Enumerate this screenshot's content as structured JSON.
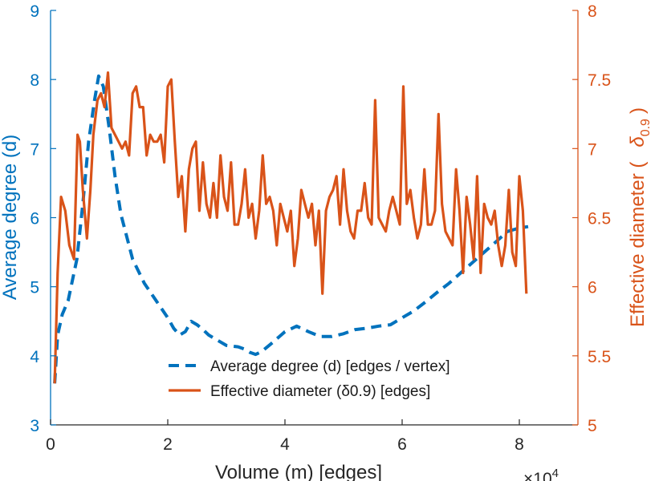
{
  "chart_data": {
    "type": "line",
    "xlabel": "Volume (m) [edges]",
    "x_multiplier": "×10",
    "x_multiplier_exp": "4",
    "ylabel_left": "Average degree (d)",
    "ylabel_right": "Effective diameter (",
    "ylabel_right_symbol": "δ",
    "ylabel_right_sub": "0.9",
    "ylabel_right_close": ")",
    "xlim": [
      0,
      90000
    ],
    "ylim_left": [
      3,
      9
    ],
    "ylim_right": [
      5,
      8
    ],
    "x_ticks": [
      0,
      20000,
      40000,
      60000,
      80000
    ],
    "x_tick_labels": [
      "0",
      "2",
      "4",
      "6",
      "8"
    ],
    "y_left_ticks": [
      3,
      4,
      5,
      6,
      7,
      8,
      9
    ],
    "y_left_tick_labels": [
      "3",
      "4",
      "5",
      "6",
      "7",
      "8",
      "9"
    ],
    "y_right_ticks": [
      5,
      5.5,
      6,
      6.5,
      7,
      7.5,
      8
    ],
    "y_right_tick_labels": [
      "5",
      "5.5",
      "6",
      "6.5",
      "7",
      "7.5",
      "8"
    ],
    "grid": false,
    "legend_position": "bottom-center",
    "colors": {
      "left_axis": "#0072BD",
      "right_axis": "#D95319",
      "average": "#0072BD",
      "diameter": "#D95319",
      "axis": "#262626"
    },
    "series": [
      {
        "name": "Average degree (d) [edges / vertex]",
        "axis": "left",
        "style": "dashed",
        "x": [
          700,
          1200,
          2000,
          3000,
          4500,
          5500,
          6500,
          7500,
          8200,
          9000,
          10000,
          11000,
          12000,
          14000,
          16000,
          18000,
          20000,
          21000,
          22000,
          23000,
          24000,
          25000,
          26000,
          27000,
          28000,
          30000,
          32000,
          33000,
          34000,
          35000,
          36000,
          38000,
          40000,
          42000,
          44000,
          46000,
          48000,
          50000,
          52000,
          54000,
          56000,
          58000,
          60000,
          62000,
          64000,
          66000,
          68000,
          70000,
          72000,
          74000,
          76000,
          78000,
          80000,
          81500
        ],
        "y": [
          3.6,
          4.3,
          4.6,
          4.8,
          5.4,
          6.2,
          7.1,
          7.7,
          8.05,
          7.9,
          7.3,
          6.6,
          6.05,
          5.4,
          5.05,
          4.8,
          4.55,
          4.4,
          4.3,
          4.35,
          4.5,
          4.45,
          4.38,
          4.3,
          4.25,
          4.15,
          4.13,
          4.1,
          4.05,
          4.02,
          4.06,
          4.2,
          4.35,
          4.43,
          4.35,
          4.28,
          4.28,
          4.32,
          4.38,
          4.4,
          4.43,
          4.45,
          4.55,
          4.65,
          4.78,
          4.92,
          5.05,
          5.2,
          5.35,
          5.5,
          5.65,
          5.8,
          5.85,
          5.87
        ]
      },
      {
        "name": "Effective diameter (δ0.9) [edges]",
        "axis": "right",
        "style": "solid",
        "x": [
          700,
          1200,
          1800,
          2500,
          3200,
          4000,
          4600,
          5000,
          5500,
          6200,
          6800,
          7300,
          8000,
          8600,
          9200,
          9800,
          10400,
          11000,
          11600,
          12200,
          12800,
          13400,
          14000,
          14600,
          15200,
          15800,
          16400,
          17000,
          17600,
          18200,
          18800,
          19400,
          20000,
          20600,
          21200,
          21800,
          22400,
          23000,
          23600,
          24200,
          24800,
          25400,
          26000,
          26600,
          27200,
          27800,
          28400,
          29000,
          29600,
          30200,
          30800,
          31400,
          32000,
          32600,
          33200,
          33800,
          34400,
          35000,
          35600,
          36200,
          36800,
          37400,
          38000,
          38600,
          39200,
          39800,
          40400,
          41000,
          41600,
          42200,
          42800,
          43400,
          44000,
          44600,
          45200,
          45800,
          46400,
          47000,
          47600,
          48200,
          48800,
          49400,
          50000,
          50600,
          51200,
          51800,
          52400,
          53000,
          53600,
          54200,
          54800,
          55400,
          56000,
          56600,
          57200,
          57800,
          58400,
          59000,
          59600,
          60200,
          60800,
          61400,
          62000,
          62600,
          63200,
          63800,
          64400,
          65000,
          65600,
          66200,
          66800,
          67400,
          68000,
          68600,
          69200,
          69800,
          70400,
          71000,
          71600,
          72200,
          72800,
          73400,
          74000,
          74600,
          75200,
          75800,
          76400,
          77000,
          77600,
          78200,
          78800,
          79400,
          80000,
          80600,
          81200
        ],
        "y": [
          5.3,
          6.1,
          6.65,
          6.55,
          6.3,
          6.2,
          7.1,
          7.05,
          6.7,
          6.35,
          6.7,
          7.1,
          7.35,
          7.4,
          7.3,
          7.55,
          7.15,
          7.1,
          7.05,
          7.0,
          7.05,
          6.95,
          7.4,
          7.45,
          7.3,
          7.3,
          6.95,
          7.1,
          7.05,
          7.05,
          7.1,
          6.9,
          7.45,
          7.5,
          7.05,
          6.65,
          6.8,
          6.4,
          6.85,
          7.0,
          7.05,
          6.55,
          6.9,
          6.6,
          6.5,
          6.75,
          6.5,
          6.95,
          6.65,
          6.55,
          6.9,
          6.45,
          6.45,
          6.6,
          6.85,
          6.5,
          6.6,
          6.35,
          6.55,
          6.95,
          6.6,
          6.65,
          6.55,
          6.3,
          6.6,
          6.5,
          6.4,
          6.55,
          6.15,
          6.35,
          6.7,
          6.6,
          6.5,
          6.6,
          6.3,
          6.55,
          5.95,
          6.55,
          6.65,
          6.7,
          6.8,
          6.45,
          6.85,
          6.55,
          6.4,
          6.35,
          6.55,
          6.55,
          6.75,
          6.5,
          6.45,
          7.35,
          6.5,
          6.45,
          6.4,
          6.55,
          6.65,
          6.55,
          6.45,
          7.45,
          6.6,
          6.7,
          6.5,
          6.35,
          6.45,
          6.85,
          6.45,
          6.45,
          6.55,
          7.25,
          6.6,
          6.4,
          6.35,
          6.3,
          6.85,
          6.55,
          6.1,
          6.65,
          6.45,
          6.2,
          6.8,
          6.1,
          6.6,
          6.5,
          6.45,
          6.55,
          6.3,
          6.15,
          6.3,
          6.7,
          6.25,
          6.15,
          6.8,
          6.55,
          5.95
        ]
      }
    ]
  }
}
